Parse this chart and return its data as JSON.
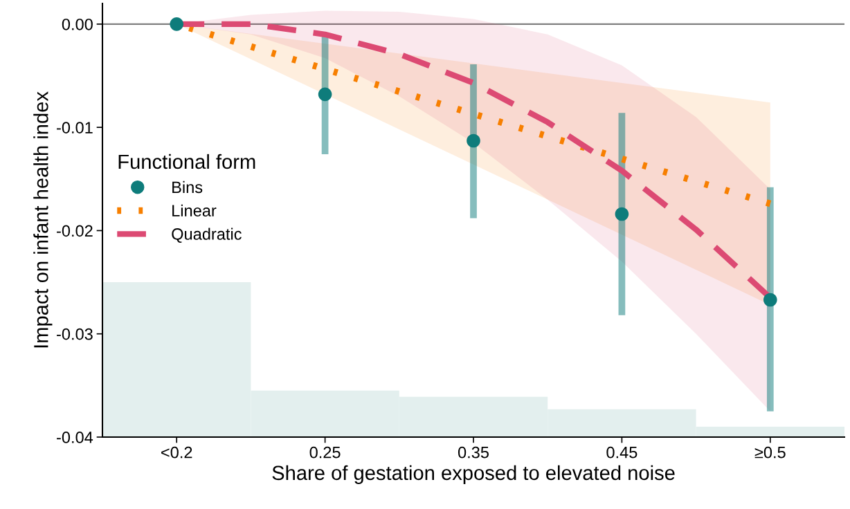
{
  "chart_data": {
    "type": "line",
    "xlabel": "Share of gestation exposed to elevated noise",
    "ylabel": "Impact on infant health index",
    "legend_title": "Functional form",
    "legend": "left",
    "xlim": [
      0.1,
      0.6
    ],
    "xticks": [
      {
        "value": 0.15,
        "label": "<0.2"
      },
      0.25,
      0.35,
      0.45,
      {
        "value": 0.55,
        "label": "≥0.5"
      }
    ],
    "ylim": [
      -0.04,
      0.002
    ],
    "yticks": [
      {
        "value": -0.04,
        "label": "-0.04"
      },
      {
        "value": -0.03,
        "label": "-0.03"
      },
      {
        "value": -0.02,
        "label": "-0.02"
      },
      {
        "value": -0.01,
        "label": "-0.01"
      },
      {
        "value": 0,
        "label": "0.00"
      }
    ],
    "grid": false,
    "ref_lines": [
      {
        "axis": "y",
        "value": 0,
        "color": "#808080",
        "line_style": "solid"
      }
    ],
    "series": [
      {
        "type": "histogram",
        "color": "#e3efee",
        "bins": [
          0.1,
          0.2,
          0.3,
          0.4,
          0.5,
          0.6
        ],
        "base": [
          -0.04,
          -0.04,
          -0.04,
          -0.04,
          -0.04
        ],
        "values": [
          0.015,
          0.0045,
          0.0039,
          0.0027,
          0.001
        ]
      },
      {
        "name": "Linear",
        "color": "#f77f00",
        "line_style": "dotted",
        "x": [
          0.15,
          0.55
        ],
        "values": [
          0,
          -0.0174
        ],
        "lower": [
          0,
          -0.0272
        ],
        "upper": [
          0,
          -0.0076
        ]
      },
      {
        "name": "Quadratic",
        "color": "#dc4a73",
        "line_style": "dashed",
        "x": [
          0.15,
          0.2,
          0.25,
          0.3,
          0.35,
          0.4,
          0.45,
          0.5,
          0.55
        ],
        "values": [
          0,
          0,
          -0.001,
          -0.0029,
          -0.0057,
          -0.0095,
          -0.0142,
          -0.0199,
          -0.0265
        ],
        "lower": [
          0,
          -0.001,
          -0.0033,
          -0.007,
          -0.0115,
          -0.017,
          -0.023,
          -0.03,
          -0.0375
        ],
        "upper": [
          0,
          0.0009,
          0.0013,
          0.0012,
          0.0005,
          -0.001,
          -0.004,
          -0.009,
          -0.016
        ]
      },
      {
        "type": "scatter",
        "name": "Bins",
        "color": "#0e7c7b",
        "marker": "circle",
        "x": [
          0.15,
          0.25,
          0.35,
          0.45,
          0.55
        ],
        "values": [
          0,
          -0.0068,
          -0.0113,
          -0.0184,
          -0.0267
        ],
        "errors": [
          null,
          [
            -0.0126,
            -0.0009
          ],
          [
            -0.0188,
            -0.0039
          ],
          [
            -0.0282,
            -0.0086
          ],
          [
            -0.0375,
            -0.0158
          ]
        ]
      }
    ]
  }
}
